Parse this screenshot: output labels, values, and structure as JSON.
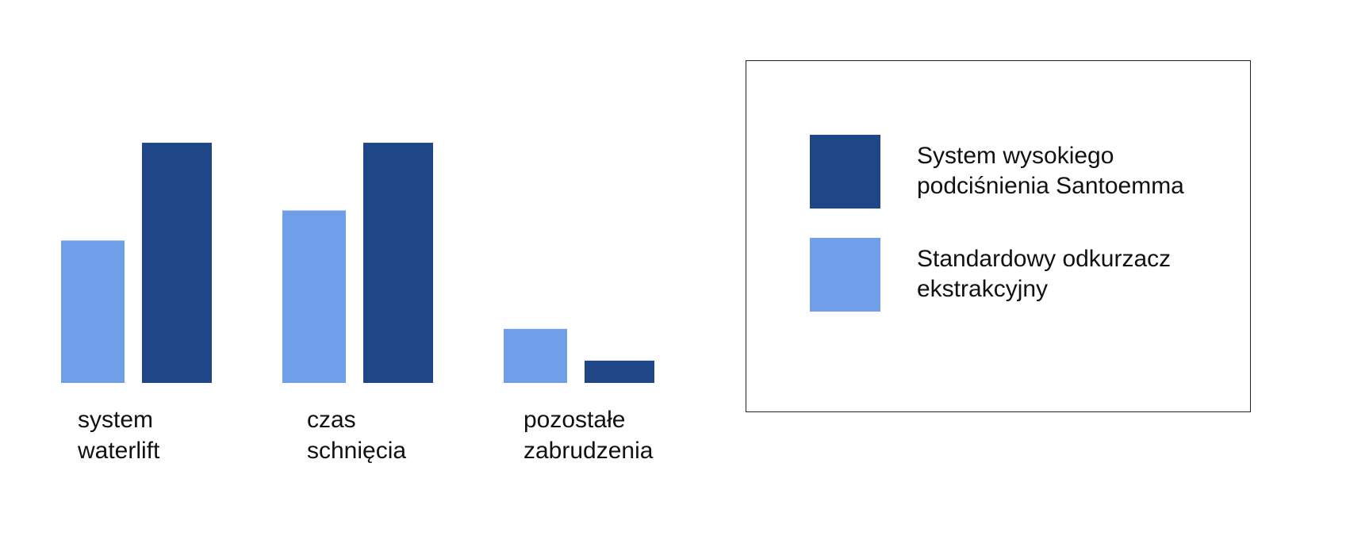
{
  "chart_data": {
    "type": "bar",
    "categories": [
      "system waterlift",
      "czas schnięcia",
      "pozostałe zabrudzenia"
    ],
    "series": [
      {
        "name": "System wysokiego podciśnienia Santoemma",
        "color": "#1f4788",
        "values": [
          280,
          280,
          26
        ]
      },
      {
        "name": "Standardowy odkurzacz ekstrakcyjny",
        "color": "#6f9fe8",
        "values": [
          166,
          201,
          63
        ]
      }
    ]
  }
}
